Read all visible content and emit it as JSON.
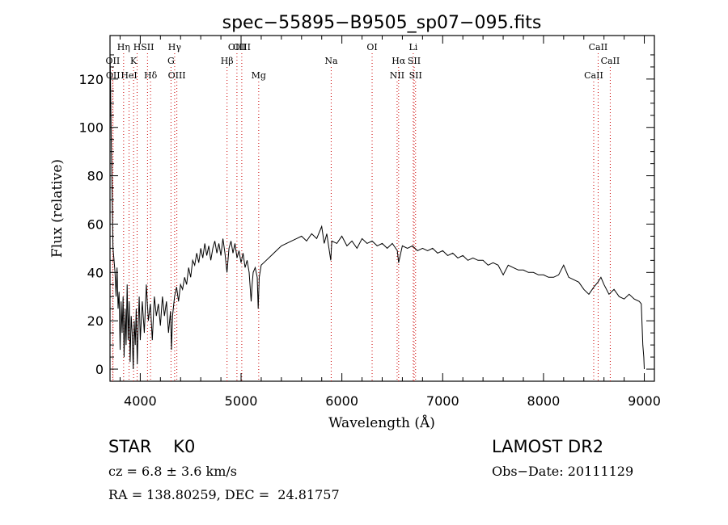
{
  "chart_data": {
    "type": "line",
    "title": "spec−55895−B9505_sp07−095.fits",
    "xlabel": "Wavelength (Å)",
    "ylabel": "Flux (relative)",
    "xlim": [
      3700,
      9100
    ],
    "ylim": [
      -5,
      138
    ],
    "xticks": [
      4000,
      5000,
      6000,
      7000,
      8000,
      9000
    ],
    "yticks": [
      0,
      20,
      40,
      60,
      80,
      100,
      120
    ],
    "grid": false,
    "line_color": "#000000",
    "marker_color": "#cc0000",
    "series": [
      {
        "points": [
          [
            3700,
            130
          ],
          [
            3705,
            120
          ],
          [
            3712,
            95
          ],
          [
            3720,
            75
          ],
          [
            3730,
            50
          ],
          [
            3740,
            45
          ],
          [
            3750,
            40
          ],
          [
            3760,
            30
          ],
          [
            3770,
            42
          ],
          [
            3780,
            25
          ],
          [
            3790,
            32
          ],
          [
            3800,
            8
          ],
          [
            3810,
            28
          ],
          [
            3820,
            15
          ],
          [
            3830,
            30
          ],
          [
            3840,
            5
          ],
          [
            3850,
            25
          ],
          [
            3860,
            10
          ],
          [
            3870,
            35
          ],
          [
            3880,
            12
          ],
          [
            3890,
            28
          ],
          [
            3900,
            3
          ],
          [
            3910,
            22
          ],
          [
            3920,
            15
          ],
          [
            3930,
            0
          ],
          [
            3940,
            20
          ],
          [
            3950,
            10
          ],
          [
            3960,
            25
          ],
          [
            3970,
            2
          ],
          [
            3980,
            18
          ],
          [
            3990,
            30
          ],
          [
            4000,
            12
          ],
          [
            4020,
            28
          ],
          [
            4040,
            15
          ],
          [
            4060,
            35
          ],
          [
            4080,
            20
          ],
          [
            4100,
            27
          ],
          [
            4120,
            12
          ],
          [
            4140,
            30
          ],
          [
            4160,
            22
          ],
          [
            4180,
            27
          ],
          [
            4200,
            18
          ],
          [
            4220,
            30
          ],
          [
            4240,
            22
          ],
          [
            4260,
            28
          ],
          [
            4280,
            15
          ],
          [
            4300,
            24
          ],
          [
            4310,
            8
          ],
          [
            4320,
            22
          ],
          [
            4340,
            30
          ],
          [
            4360,
            34
          ],
          [
            4380,
            28
          ],
          [
            4400,
            35
          ],
          [
            4420,
            33
          ],
          [
            4440,
            38
          ],
          [
            4460,
            35
          ],
          [
            4480,
            42
          ],
          [
            4500,
            38
          ],
          [
            4520,
            45
          ],
          [
            4540,
            43
          ],
          [
            4560,
            48
          ],
          [
            4580,
            44
          ],
          [
            4600,
            50
          ],
          [
            4620,
            46
          ],
          [
            4640,
            52
          ],
          [
            4660,
            47
          ],
          [
            4680,
            51
          ],
          [
            4700,
            45
          ],
          [
            4720,
            50
          ],
          [
            4740,
            53
          ],
          [
            4760,
            48
          ],
          [
            4780,
            52
          ],
          [
            4800,
            47
          ],
          [
            4820,
            54
          ],
          [
            4840,
            48
          ],
          [
            4860,
            40
          ],
          [
            4880,
            50
          ],
          [
            4900,
            53
          ],
          [
            4920,
            48
          ],
          [
            4940,
            52
          ],
          [
            4960,
            46
          ],
          [
            4980,
            49
          ],
          [
            5000,
            44
          ],
          [
            5020,
            48
          ],
          [
            5040,
            42
          ],
          [
            5060,
            45
          ],
          [
            5080,
            40
          ],
          [
            5100,
            28
          ],
          [
            5110,
            35
          ],
          [
            5120,
            40
          ],
          [
            5140,
            42
          ],
          [
            5160,
            38
          ],
          [
            5170,
            25
          ],
          [
            5180,
            38
          ],
          [
            5200,
            43
          ],
          [
            5250,
            45
          ],
          [
            5300,
            47
          ],
          [
            5350,
            49
          ],
          [
            5400,
            51
          ],
          [
            5450,
            52
          ],
          [
            5500,
            53
          ],
          [
            5550,
            54
          ],
          [
            5600,
            55
          ],
          [
            5650,
            53
          ],
          [
            5700,
            56
          ],
          [
            5750,
            54
          ],
          [
            5800,
            59
          ],
          [
            5825,
            52
          ],
          [
            5850,
            56
          ],
          [
            5890,
            45
          ],
          [
            5900,
            53
          ],
          [
            5950,
            52
          ],
          [
            6000,
            55
          ],
          [
            6050,
            51
          ],
          [
            6100,
            53
          ],
          [
            6150,
            50
          ],
          [
            6200,
            54
          ],
          [
            6250,
            52
          ],
          [
            6300,
            53
          ],
          [
            6350,
            51
          ],
          [
            6400,
            52
          ],
          [
            6450,
            50
          ],
          [
            6500,
            52
          ],
          [
            6550,
            49
          ],
          [
            6563,
            44
          ],
          [
            6600,
            51
          ],
          [
            6650,
            50
          ],
          [
            6700,
            51
          ],
          [
            6750,
            49
          ],
          [
            6800,
            50
          ],
          [
            6850,
            49
          ],
          [
            6900,
            50
          ],
          [
            6950,
            48
          ],
          [
            7000,
            49
          ],
          [
            7050,
            47
          ],
          [
            7100,
            48
          ],
          [
            7150,
            46
          ],
          [
            7200,
            47
          ],
          [
            7250,
            45
          ],
          [
            7300,
            46
          ],
          [
            7350,
            45
          ],
          [
            7400,
            45
          ],
          [
            7450,
            43
          ],
          [
            7500,
            44
          ],
          [
            7550,
            43
          ],
          [
            7600,
            39
          ],
          [
            7650,
            43
          ],
          [
            7700,
            42
          ],
          [
            7750,
            41
          ],
          [
            7800,
            41
          ],
          [
            7850,
            40
          ],
          [
            7900,
            40
          ],
          [
            7950,
            39
          ],
          [
            8000,
            39
          ],
          [
            8050,
            38
          ],
          [
            8100,
            38
          ],
          [
            8150,
            39
          ],
          [
            8200,
            43
          ],
          [
            8250,
            38
          ],
          [
            8300,
            37
          ],
          [
            8350,
            36
          ],
          [
            8400,
            33
          ],
          [
            8450,
            31
          ],
          [
            8500,
            34
          ],
          [
            8540,
            36
          ],
          [
            8570,
            38
          ],
          [
            8600,
            35
          ],
          [
            8650,
            31
          ],
          [
            8700,
            33
          ],
          [
            8750,
            30
          ],
          [
            8800,
            29
          ],
          [
            8850,
            31
          ],
          [
            8900,
            29
          ],
          [
            8950,
            28
          ],
          [
            8970,
            27
          ],
          [
            8985,
            10
          ],
          [
            8995,
            5
          ],
          [
            9000,
            0
          ]
        ]
      }
    ],
    "lines": [
      {
        "label": "OII",
        "x": 3727,
        "row": 1
      },
      {
        "label": "OII",
        "x": 3730,
        "row": 2
      },
      {
        "label": "Hη",
        "x": 3835,
        "row": 0
      },
      {
        "label": "HeI",
        "x": 3889,
        "row": 2
      },
      {
        "label": "K",
        "x": 3934,
        "row": 1
      },
      {
        "label": "H",
        "x": 3969,
        "row": 0
      },
      {
        "label": "SII",
        "x": 4072,
        "row": 0
      },
      {
        "label": "Hδ",
        "x": 4102,
        "row": 2
      },
      {
        "label": "Hγ",
        "x": 4341,
        "row": 0
      },
      {
        "label": "G",
        "x": 4305,
        "row": 1
      },
      {
        "label": "OIII",
        "x": 4363,
        "row": 2
      },
      {
        "label": "Hβ",
        "x": 4861,
        "row": 1
      },
      {
        "label": "OIII",
        "x": 4959,
        "row": 0
      },
      {
        "label": "OIII",
        "x": 5007,
        "row": 0
      },
      {
        "label": "Mg",
        "x": 5175,
        "row": 2
      },
      {
        "label": "Na",
        "x": 5894,
        "row": 1
      },
      {
        "label": "OI",
        "x": 6300,
        "row": 0
      },
      {
        "label": "Hα",
        "x": 6563,
        "row": 1
      },
      {
        "label": "NII",
        "x": 6548,
        "row": 2
      },
      {
        "label": "Li",
        "x": 6708,
        "row": 0
      },
      {
        "label": "SII",
        "x": 6717,
        "row": 1
      },
      {
        "label": "SII",
        "x": 6731,
        "row": 2
      },
      {
        "label": "CaII",
        "x": 8498,
        "row": 2
      },
      {
        "label": "CaII",
        "x": 8542,
        "row": 0
      },
      {
        "label": "CaII",
        "x": 8662,
        "row": 1
      }
    ]
  },
  "info": {
    "class": "STAR    K0",
    "survey": "LAMOST DR2",
    "cz": "cz = 6.8 ± 3.6 km/s",
    "obs_date": "Obs−Date: 20111129",
    "radec": "RA = 138.80259, DEC =  24.81757"
  }
}
